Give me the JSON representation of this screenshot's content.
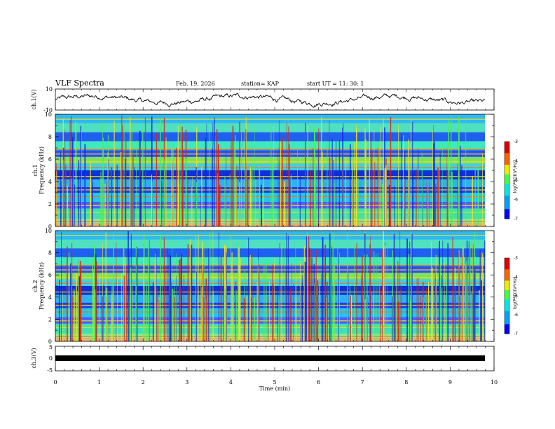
{
  "chart_data": [
    {
      "type": "line",
      "panel": "ch1-waveform",
      "title": "VLF Spectra",
      "header": {
        "date": "Feb. 19, 2026",
        "station": "station= KAP",
        "start": "start UT =  11: 30: 1"
      },
      "ylabel": "ch.1(V)",
      "ylim": [
        -10,
        10
      ],
      "yticks": [
        "10",
        "-10"
      ],
      "xlim": [
        0,
        10
      ]
    },
    {
      "type": "heatmap",
      "panel": "ch1-spectrogram",
      "ylabel": "ch.1",
      "ylabel2": "Frequency (kHz)",
      "ylim": [
        0,
        10
      ],
      "yticks": [
        "0",
        "2",
        "4",
        "6",
        "8",
        "10"
      ],
      "xlim": [
        0,
        10
      ],
      "colorbar": {
        "label": "log(PSD)(V²/Hz)",
        "range": [
          -7,
          -3
        ],
        "ticks": [
          "-3",
          "-4",
          "-5",
          "-6",
          "-7"
        ]
      }
    },
    {
      "type": "heatmap",
      "panel": "ch2-spectrogram",
      "ylabel": "ch.2",
      "ylabel2": "Frequency (kHz)",
      "ylim": [
        0,
        10
      ],
      "yticks": [
        "0",
        "2",
        "4",
        "6",
        "8",
        "10"
      ],
      "xlim": [
        0,
        10
      ],
      "colorbar": {
        "label": "log(PSD)(V²/Hz)",
        "range": [
          -7,
          -3
        ],
        "ticks": [
          "-3",
          "-4",
          "-5",
          "-6",
          "-7"
        ]
      }
    },
    {
      "type": "line",
      "panel": "ch3-waveform",
      "ylabel": "ch.3(V)",
      "ylim": [
        -5,
        5
      ],
      "yticks": [
        "5",
        "0",
        "-5"
      ],
      "xlabel": "Time (min)",
      "xlim": [
        0,
        10
      ],
      "xticks": [
        "0",
        "1",
        "2",
        "3",
        "4",
        "5",
        "6",
        "7",
        "8",
        "9",
        "10"
      ]
    }
  ]
}
